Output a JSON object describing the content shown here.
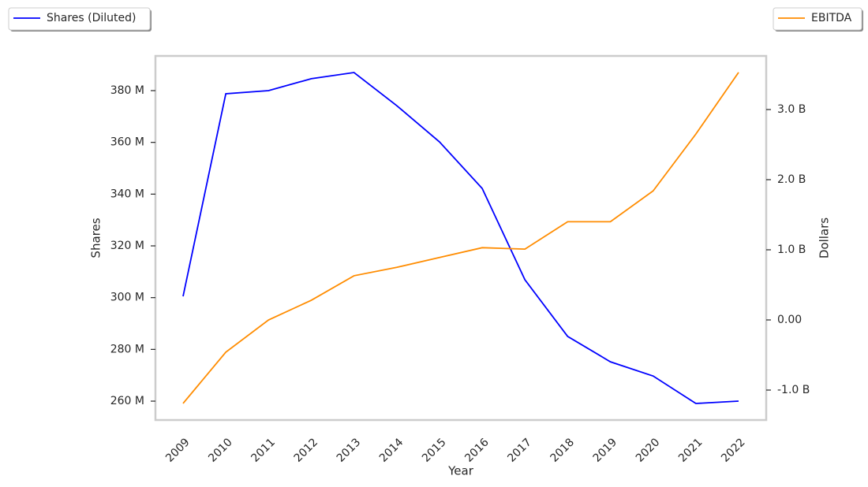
{
  "chart_data": {
    "type": "line",
    "categories": [
      "2009",
      "2010",
      "2011",
      "2012",
      "2013",
      "2014",
      "2015",
      "2016",
      "2017",
      "2018",
      "2019",
      "2020",
      "2021",
      "2022"
    ],
    "x_label": "Year",
    "y_label": "Shares",
    "y2_label": "Dollars",
    "series": [
      {
        "name": "Shares (Diluted)",
        "color": "#0000ff",
        "values": [
          300500000,
          378800000,
          380000000,
          384600000,
          387000000,
          374200000,
          360200000,
          342200000,
          306900000,
          285000000,
          275200000,
          269700000,
          259100000,
          260000000
        ]
      },
      {
        "name": "EBITDA",
        "color": "#ff8c00",
        "axis": "y2",
        "values": [
          -1190000000,
          -460000000,
          0,
          280000000,
          630000000,
          750000000,
          890000000,
          1030000000,
          1010000000,
          1400000000,
          1400000000,
          1840000000,
          2650000000,
          3530000000
        ]
      }
    ],
    "ylim": [
      252700000,
      393400000
    ],
    "yticks": [
      {
        "value": 260000000,
        "label": "260 M"
      },
      {
        "value": 280000000,
        "label": "280 M"
      },
      {
        "value": 300000000,
        "label": "300 M"
      },
      {
        "value": 320000000,
        "label": "320 M"
      },
      {
        "value": 340000000,
        "label": "340 M"
      },
      {
        "value": 360000000,
        "label": "360 M"
      },
      {
        "value": 380000000,
        "label": "380 M"
      }
    ],
    "y2lim": [
      -1427000000,
      3764000000
    ],
    "y2ticks": [
      {
        "value": -1000000000,
        "label": "-1.0 B"
      },
      {
        "value": 0,
        "label": "0.00"
      },
      {
        "value": 1000000000,
        "label": "1.0 B"
      },
      {
        "value": 2000000000,
        "label": "2.0 B"
      },
      {
        "value": 3000000000,
        "label": "3.0 B"
      }
    ]
  }
}
